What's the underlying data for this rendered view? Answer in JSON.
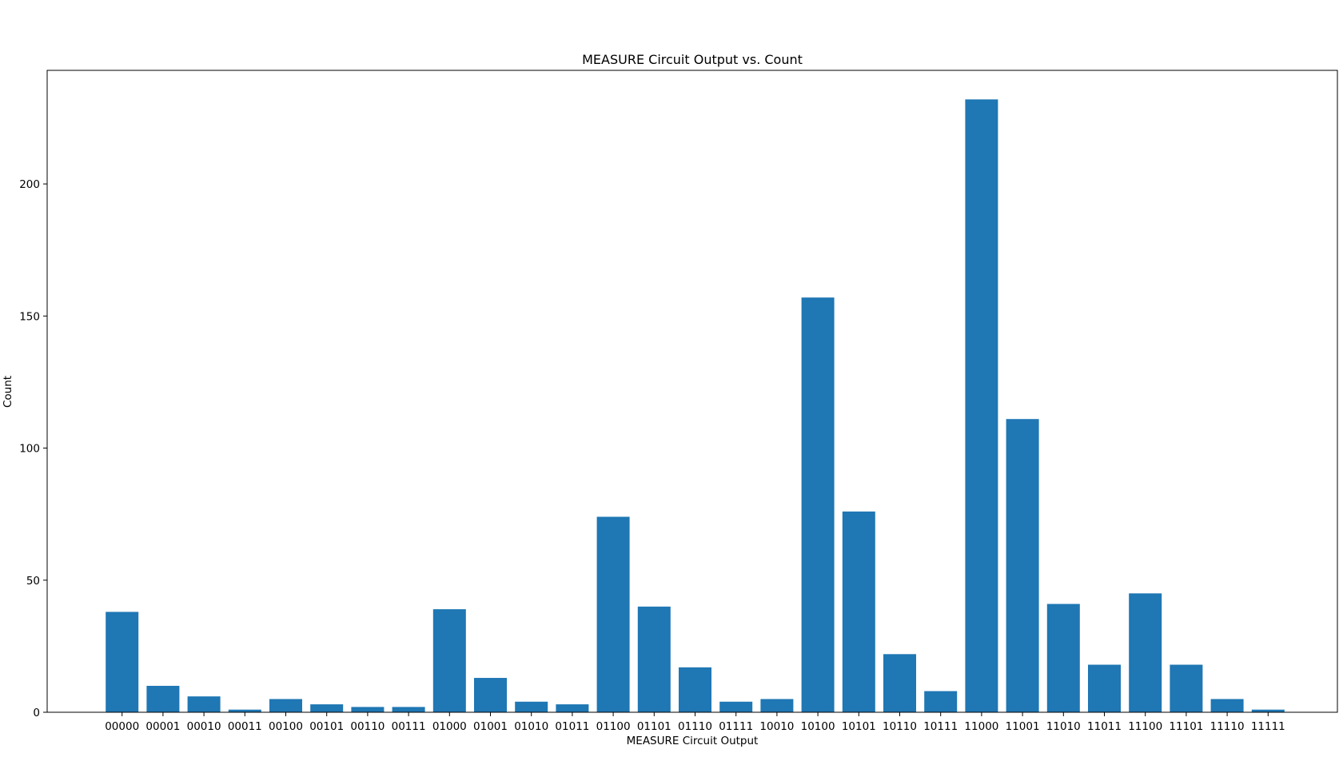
{
  "chart_data": {
    "type": "bar",
    "title": "MEASURE Circuit Output vs. Count",
    "xlabel": "MEASURE Circuit Output",
    "ylabel": "Count",
    "ylim": [
      0,
      243
    ],
    "yticks": [
      0,
      50,
      100,
      150,
      200
    ],
    "grid": false,
    "bar_color": "#1f77b4",
    "categories": [
      "00000",
      "00001",
      "00010",
      "00011",
      "00100",
      "00101",
      "00110",
      "00111",
      "01000",
      "01001",
      "01010",
      "01011",
      "01100",
      "01101",
      "01110",
      "01111",
      "10010",
      "10100",
      "10101",
      "10110",
      "10111",
      "11000",
      "11001",
      "11010",
      "11011",
      "11100",
      "11101",
      "11110",
      "11111"
    ],
    "values": [
      38,
      10,
      6,
      1,
      5,
      3,
      2,
      2,
      39,
      13,
      4,
      3,
      74,
      40,
      17,
      4,
      5,
      157,
      76,
      22,
      8,
      232,
      111,
      41,
      18,
      45,
      18,
      5,
      1
    ]
  }
}
